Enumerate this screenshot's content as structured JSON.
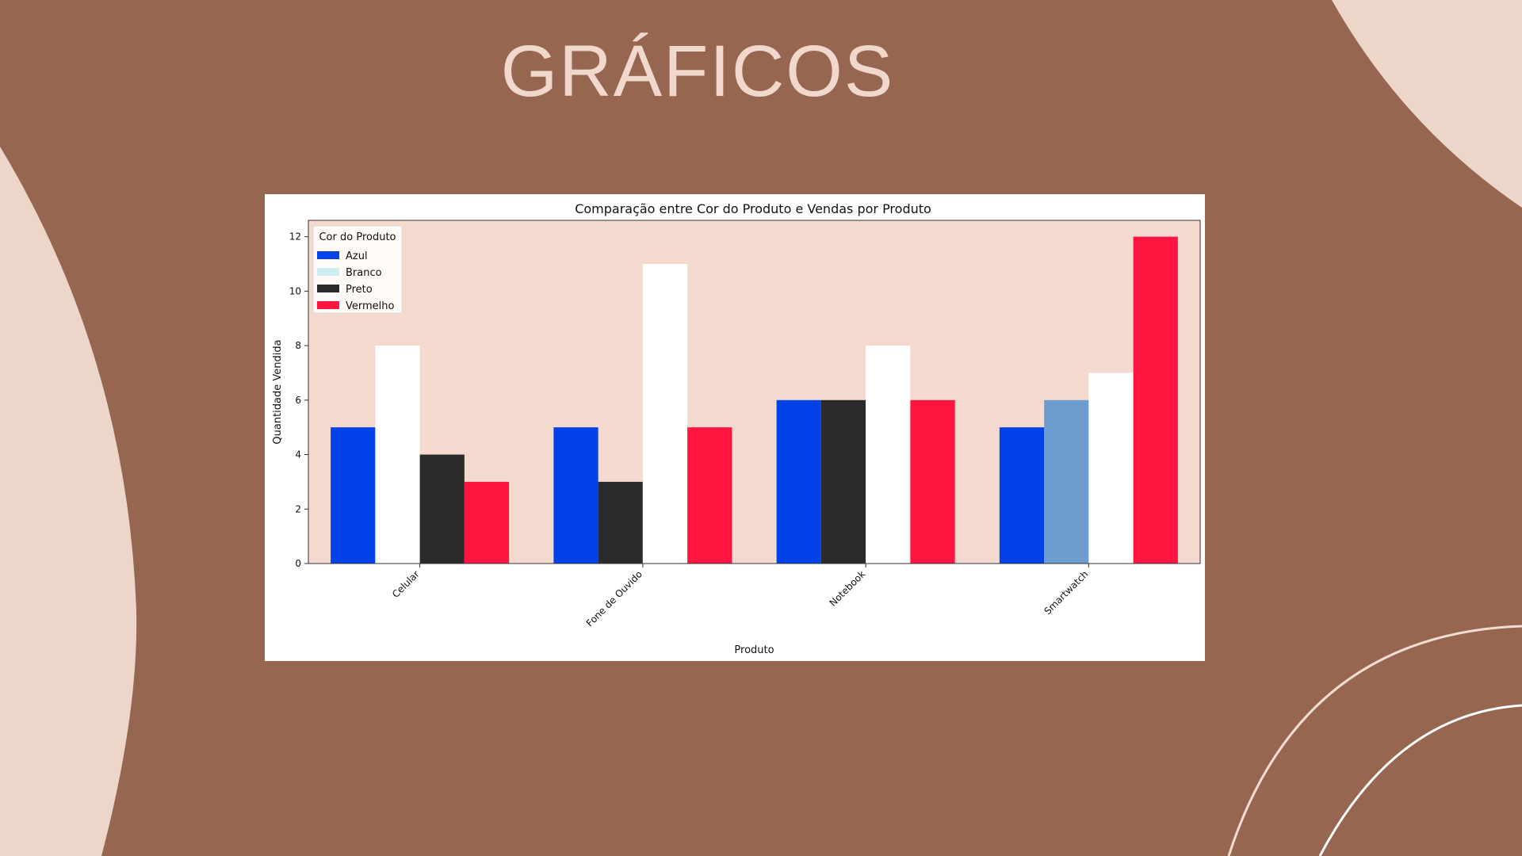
{
  "slide": {
    "title": "GRÁFICOS",
    "colors": {
      "background": "#976651",
      "decor": "#ecd6ca",
      "line": "#ffffff"
    }
  },
  "chart_data": {
    "type": "bar",
    "title": "Comparação entre Cor do Produto e Vendas por Produto",
    "xlabel": "Produto",
    "ylabel": "Quantidade Vendida",
    "categories": [
      "Celular",
      "Fone de Ouvido",
      "Notebook",
      "Smartwatch"
    ],
    "ylim": [
      0,
      12.6
    ],
    "yticks": [
      0,
      2,
      4,
      6,
      8,
      10,
      12
    ],
    "plot_background": "#f3d9ce",
    "legend": {
      "title": "Cor do Produto",
      "placement": "top-left",
      "entries": [
        {
          "label": "Azul",
          "color": "#0341e9"
        },
        {
          "label": "Branco",
          "color": "#cdeef1"
        },
        {
          "label": "Preto",
          "color": "#2b2b2b"
        },
        {
          "label": "Vermelho",
          "color": "#ff153f"
        }
      ]
    },
    "bars": [
      [
        {
          "value": 5,
          "color": "#0341e9"
        },
        {
          "value": 8,
          "color": "#ffffff"
        },
        {
          "value": 4,
          "color": "#2b2b2b"
        },
        {
          "value": 3,
          "color": "#ff153f"
        }
      ],
      [
        {
          "value": 5,
          "color": "#0341e9"
        },
        {
          "value": 3,
          "color": "#2b2b2b"
        },
        {
          "value": 11,
          "color": "#ffffff"
        },
        {
          "value": 5,
          "color": "#ff153f"
        }
      ],
      [
        {
          "value": 6,
          "color": "#0341e9"
        },
        {
          "value": 6,
          "color": "#2b2b2b"
        },
        {
          "value": 8,
          "color": "#ffffff"
        },
        {
          "value": 6,
          "color": "#ff153f"
        }
      ],
      [
        {
          "value": 5,
          "color": "#0341e9"
        },
        {
          "value": 6,
          "color": "#6d9ccf"
        },
        {
          "value": 7,
          "color": "#ffffff"
        },
        {
          "value": 12,
          "color": "#ff153f"
        }
      ]
    ]
  }
}
